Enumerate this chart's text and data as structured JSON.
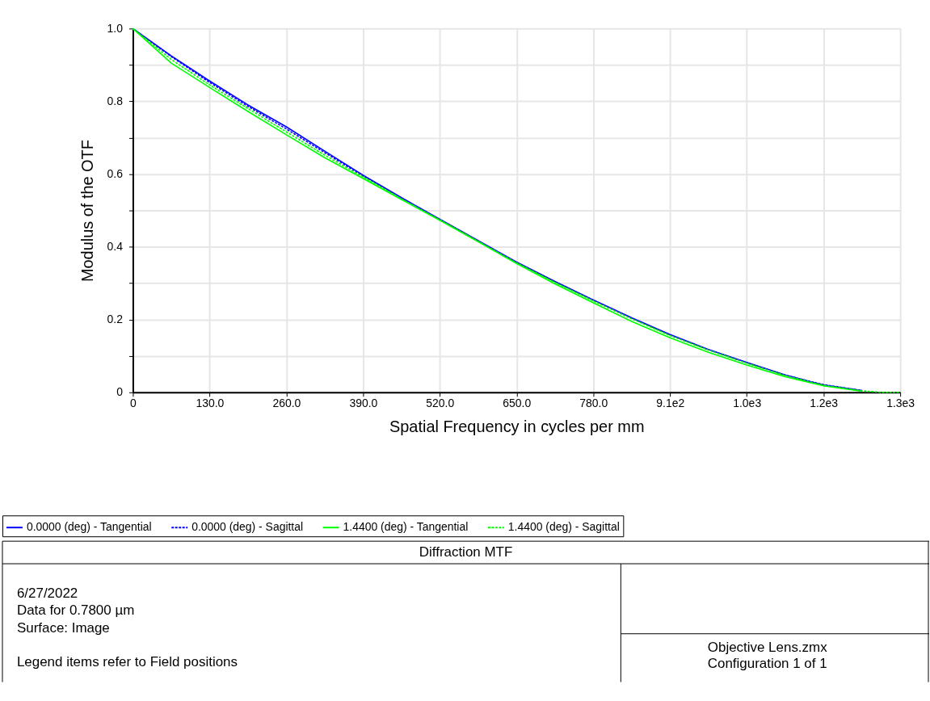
{
  "chart_data": {
    "type": "line",
    "title": "Diffraction MTF",
    "xlabel": "Spatial Frequency in cycles per mm",
    "ylabel": "Modulus of the OTF",
    "x": [
      0,
      65,
      130,
      195,
      260,
      325,
      390,
      455,
      520,
      585,
      650,
      715,
      780,
      845,
      910,
      975,
      1040,
      1105,
      1170,
      1235,
      1270,
      1300
    ],
    "series": [
      {
        "name": "0.0000 (deg) - Tangential",
        "color": "#0000ff",
        "line_style": "solid",
        "values": [
          1.0,
          0.925,
          0.856,
          0.79,
          0.73,
          0.663,
          0.597,
          0.535,
          0.476,
          0.417,
          0.358,
          0.305,
          0.254,
          0.205,
          0.159,
          0.118,
          0.082,
          0.048,
          0.02,
          0.005,
          null,
          null
        ]
      },
      {
        "name": "0.0000 (deg) - Sagittal",
        "color": "#0000ff",
        "line_style": "dashed",
        "values": [
          1.0,
          0.923,
          0.852,
          0.786,
          0.724,
          0.659,
          0.595,
          0.534,
          0.475,
          0.416,
          0.357,
          0.304,
          0.253,
          0.204,
          0.158,
          0.117,
          0.081,
          0.047,
          0.021,
          0.005,
          null,
          null
        ]
      },
      {
        "name": "1.4400 (deg) - Tangential",
        "color": "#00ff00",
        "line_style": "solid",
        "values": [
          1.0,
          0.905,
          0.838,
          0.772,
          0.708,
          0.645,
          0.588,
          0.53,
          0.473,
          0.414,
          0.354,
          0.298,
          0.246,
          0.195,
          0.15,
          0.11,
          0.075,
          0.043,
          0.018,
          0.003,
          null,
          null
        ]
      },
      {
        "name": "1.4400 (deg) - Sagittal",
        "color": "#00ff00",
        "line_style": "dashed",
        "values": [
          1.0,
          0.915,
          0.845,
          0.78,
          0.716,
          0.652,
          0.592,
          0.532,
          0.474,
          0.415,
          0.356,
          0.302,
          0.251,
          0.202,
          0.156,
          0.116,
          0.08,
          0.046,
          0.019,
          0.004,
          0.0,
          0.0
        ]
      }
    ],
    "xlim": [
      0,
      1300
    ],
    "ylim": [
      0,
      1
    ],
    "xticks": [
      {
        "value": 0,
        "label": "0"
      },
      {
        "value": 130,
        "label": "130.0"
      },
      {
        "value": 260,
        "label": "260.0"
      },
      {
        "value": 390,
        "label": "390.0"
      },
      {
        "value": 520,
        "label": "520.0"
      },
      {
        "value": 650,
        "label": "650.0"
      },
      {
        "value": 780,
        "label": "780.0"
      },
      {
        "value": 910,
        "label": "9.1e2"
      },
      {
        "value": 1040,
        "label": "1.0e3"
      },
      {
        "value": 1170,
        "label": "1.2e3"
      },
      {
        "value": 1300,
        "label": "1.3e3"
      }
    ],
    "yticks": [
      {
        "value": 0,
        "label": "0"
      },
      {
        "value": 0.1,
        "label": null
      },
      0.2,
      {
        "value": 0.3,
        "label": null
      },
      0.4,
      {
        "value": 0.5,
        "label": null
      },
      0.6,
      {
        "value": 0.7,
        "label": null
      },
      0.8,
      {
        "value": 0.9,
        "label": null
      },
      {
        "value": 1,
        "label": "1.0"
      }
    ],
    "grid": true,
    "legend": "bottom",
    "marker": "none",
    "annotations": [
      "6/27/2022",
      "Data for 0.7800 µm",
      "Surface: Image",
      "Legend items refer to Field positions",
      "Objective Lens.zmx",
      "Configuration 1 of 1"
    ]
  }
}
